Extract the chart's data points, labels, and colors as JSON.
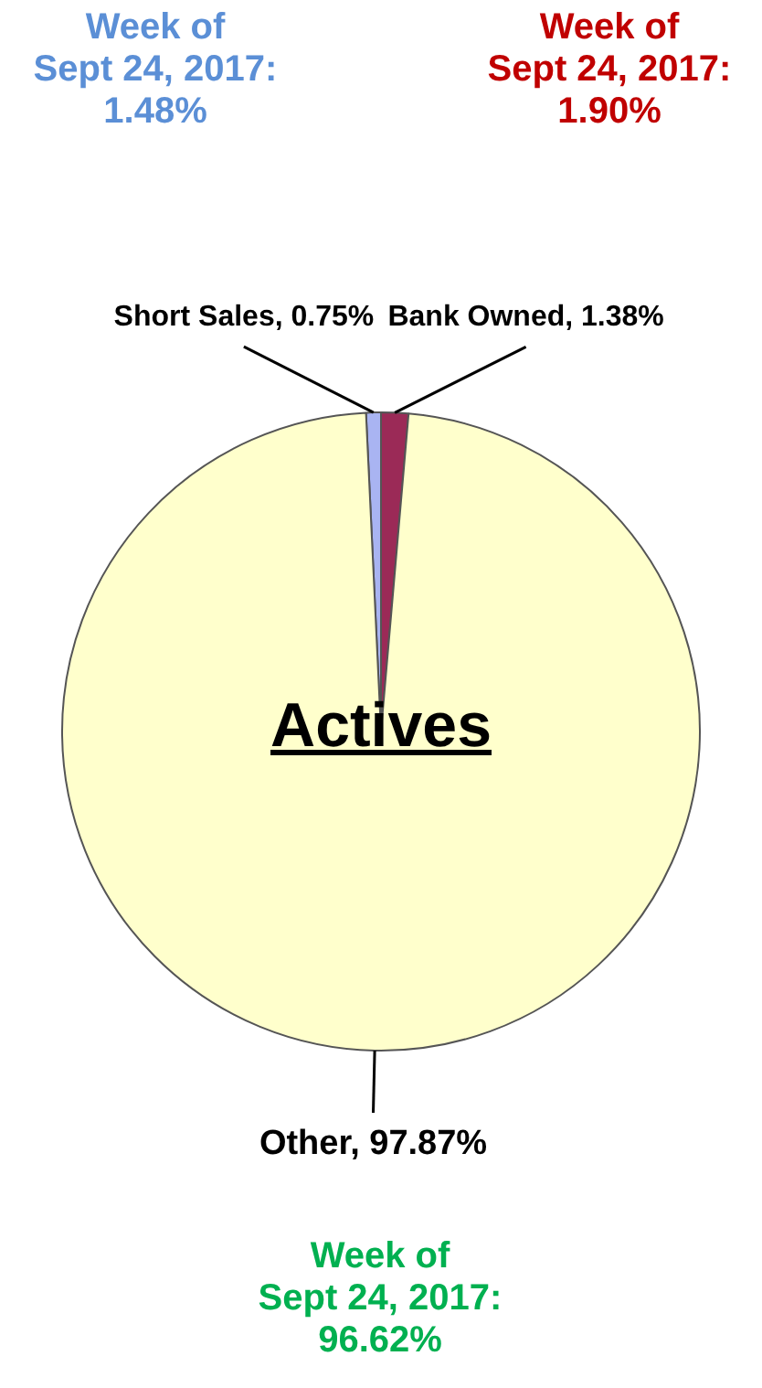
{
  "chart_data": {
    "type": "pie",
    "title": "Actives",
    "categories": [
      "Short Sales",
      "Bank Owned",
      "Other"
    ],
    "values": [
      0.75,
      1.38,
      97.87
    ],
    "colors": [
      "#a9b4f2",
      "#9b2a57",
      "#ffffcc"
    ],
    "value_labels": [
      "0.75%",
      "1.38%",
      "97.87%"
    ],
    "legend": false,
    "annotations": [
      "Week of\nSept 24, 2017:\n1.48%",
      "Week of\nSept 24, 2017:\n1.90%",
      "Week of\nSept 24, 2017:\n96.62%"
    ]
  }
}
